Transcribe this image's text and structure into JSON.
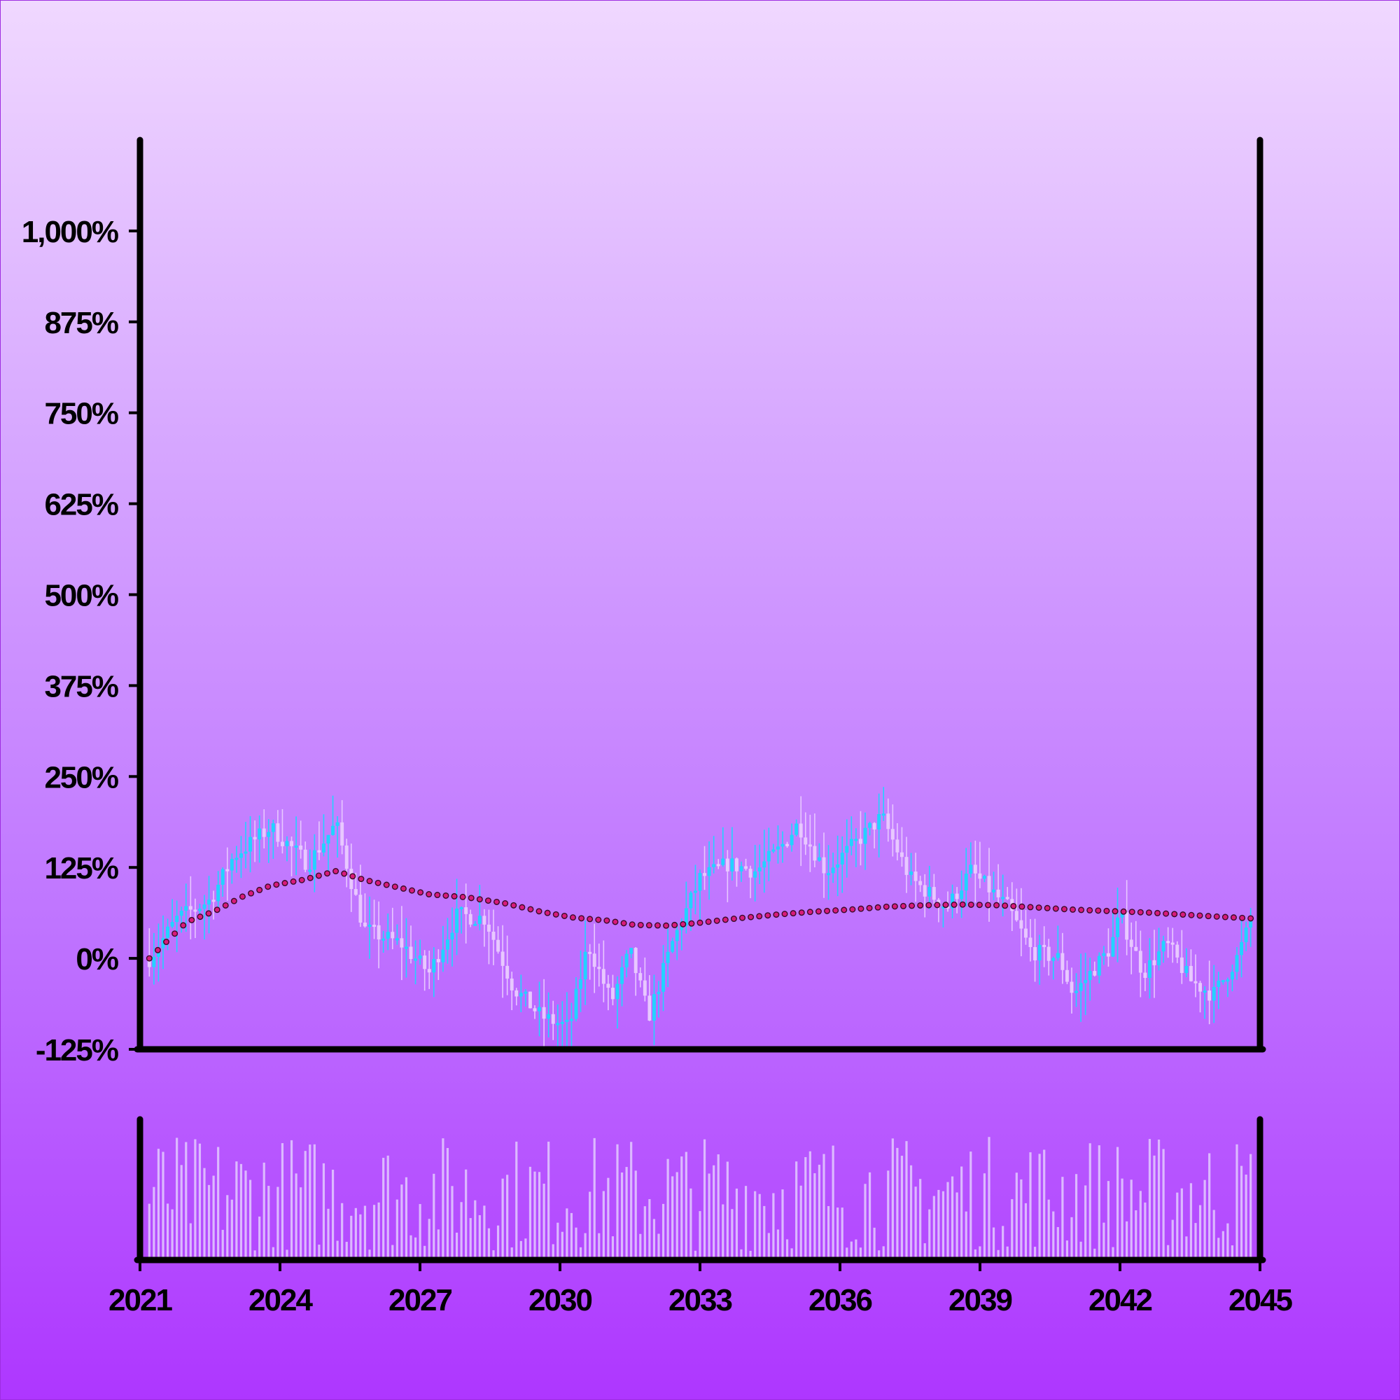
{
  "chart_data": {
    "type": "candlestick",
    "title": "",
    "xlabel": "",
    "ylabel": "",
    "x_ticks": [
      "2021",
      "2024",
      "2027",
      "2030",
      "2033",
      "2036",
      "2039",
      "2042",
      "2045"
    ],
    "x_range": [
      2021,
      2045
    ],
    "y_ticks": [
      "-125%",
      "0%",
      "125%",
      "250%",
      "375%",
      "500%",
      "625%",
      "750%",
      "875%",
      "1,000%"
    ],
    "y_range": [
      -125,
      1125
    ],
    "grid": false,
    "legend": "none",
    "colors": {
      "up_candle": "#22d3ff",
      "down_candle": "#e8c8ff",
      "moving_average": "#d81b7a",
      "volume_bars": "#e0c4ff",
      "axis": "#000000",
      "background_top": "#f0d8ff",
      "background_bottom": "#ae36ff"
    },
    "price_path": [
      {
        "x": 2021.2,
        "y": 0
      },
      {
        "x": 2021.8,
        "y": 55
      },
      {
        "x": 2022.5,
        "y": 80
      },
      {
        "x": 2023.0,
        "y": 140
      },
      {
        "x": 2023.8,
        "y": 180
      },
      {
        "x": 2024.6,
        "y": 130
      },
      {
        "x": 2025.2,
        "y": 185
      },
      {
        "x": 2025.8,
        "y": 40
      },
      {
        "x": 2026.6,
        "y": 20
      },
      {
        "x": 2027.2,
        "y": -20
      },
      {
        "x": 2027.8,
        "y": 60
      },
      {
        "x": 2028.4,
        "y": 55
      },
      {
        "x": 2029.0,
        "y": -40
      },
      {
        "x": 2029.6,
        "y": -80
      },
      {
        "x": 2030.2,
        "y": -95
      },
      {
        "x": 2030.6,
        "y": 20
      },
      {
        "x": 2031.1,
        "y": -60
      },
      {
        "x": 2031.5,
        "y": 10
      },
      {
        "x": 2031.9,
        "y": -80
      },
      {
        "x": 2032.4,
        "y": 20
      },
      {
        "x": 2033.0,
        "y": 110
      },
      {
        "x": 2033.6,
        "y": 130
      },
      {
        "x": 2034.2,
        "y": 120
      },
      {
        "x": 2034.7,
        "y": 150
      },
      {
        "x": 2035.1,
        "y": 185
      },
      {
        "x": 2035.7,
        "y": 120
      },
      {
        "x": 2036.2,
        "y": 150
      },
      {
        "x": 2036.9,
        "y": 195
      },
      {
        "x": 2037.5,
        "y": 110
      },
      {
        "x": 2038.3,
        "y": 70
      },
      {
        "x": 2038.8,
        "y": 120
      },
      {
        "x": 2039.6,
        "y": 70
      },
      {
        "x": 2040.1,
        "y": 10
      },
      {
        "x": 2040.7,
        "y": 0
      },
      {
        "x": 2041.0,
        "y": -50
      },
      {
        "x": 2041.8,
        "y": 15
      },
      {
        "x": 2042.0,
        "y": 60
      },
      {
        "x": 2042.5,
        "y": -20
      },
      {
        "x": 2043.0,
        "y": 20
      },
      {
        "x": 2043.5,
        "y": -30
      },
      {
        "x": 2044.0,
        "y": -50
      },
      {
        "x": 2044.5,
        "y": 0
      },
      {
        "x": 2044.8,
        "y": 50
      }
    ],
    "moving_average": [
      {
        "x": 2021.2,
        "y": 0
      },
      {
        "x": 2021.6,
        "y": 25
      },
      {
        "x": 2022.0,
        "y": 50
      },
      {
        "x": 2022.6,
        "y": 65
      },
      {
        "x": 2023.2,
        "y": 85
      },
      {
        "x": 2023.8,
        "y": 100
      },
      {
        "x": 2024.5,
        "y": 108
      },
      {
        "x": 2025.2,
        "y": 120
      },
      {
        "x": 2025.8,
        "y": 108
      },
      {
        "x": 2026.5,
        "y": 98
      },
      {
        "x": 2027.2,
        "y": 88
      },
      {
        "x": 2028.0,
        "y": 84
      },
      {
        "x": 2028.8,
        "y": 76
      },
      {
        "x": 2029.6,
        "y": 64
      },
      {
        "x": 2030.3,
        "y": 56
      },
      {
        "x": 2031.0,
        "y": 52
      },
      {
        "x": 2031.6,
        "y": 46
      },
      {
        "x": 2032.3,
        "y": 45
      },
      {
        "x": 2033.0,
        "y": 49
      },
      {
        "x": 2033.8,
        "y": 55
      },
      {
        "x": 2034.6,
        "y": 60
      },
      {
        "x": 2035.4,
        "y": 64
      },
      {
        "x": 2036.2,
        "y": 67
      },
      {
        "x": 2037.0,
        "y": 71
      },
      {
        "x": 2037.8,
        "y": 73
      },
      {
        "x": 2038.6,
        "y": 74
      },
      {
        "x": 2039.4,
        "y": 73
      },
      {
        "x": 2040.2,
        "y": 70
      },
      {
        "x": 2041.0,
        "y": 67
      },
      {
        "x": 2041.8,
        "y": 65
      },
      {
        "x": 2042.6,
        "y": 63
      },
      {
        "x": 2043.4,
        "y": 60
      },
      {
        "x": 2044.2,
        "y": 57
      },
      {
        "x": 2044.8,
        "y": 55
      }
    ]
  }
}
